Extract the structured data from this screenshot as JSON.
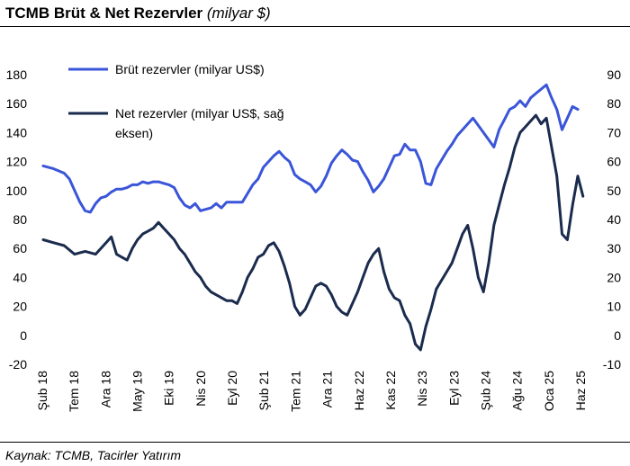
{
  "title": "TCMB Brüt & Net Rezervler",
  "title_unit": "(milyar $)",
  "source": "Kaynak: TCMB, Tacirler Yatırım",
  "chart_data": {
    "type": "line",
    "x_labels": [
      "Şub 18",
      "Tem 18",
      "Ara 18",
      "May 19",
      "Eki 19",
      "Nis 20",
      "Eyl 20",
      "Şub 21",
      "Tem 21",
      "Ara 21",
      "Haz 22",
      "Kas 22",
      "Nis 23",
      "Eyl 23",
      "Şub 24",
      "Ağu 24",
      "Oca 25",
      "Haz 25"
    ],
    "y_left": {
      "min": -20,
      "max": 180,
      "ticks": [
        "180",
        "160",
        "140",
        "120",
        "100",
        "80",
        "60",
        "40",
        "20",
        "0",
        "-20"
      ]
    },
    "y_right": {
      "min": -10,
      "max": 90,
      "ticks": [
        "90",
        "80",
        "70",
        "60",
        "50",
        "40",
        "30",
        "20",
        "10",
        "0",
        "-10"
      ]
    },
    "grid": false,
    "legend_position": "top-left",
    "series": [
      {
        "name": "Brüt rezervler (milyar US$)",
        "axis": "left",
        "color": "#3a55d8",
        "values": [
          [
            0,
            117
          ],
          [
            2,
            115
          ],
          [
            4,
            112
          ],
          [
            5,
            108
          ],
          [
            6,
            100
          ],
          [
            7,
            92
          ],
          [
            8,
            86
          ],
          [
            9,
            85
          ],
          [
            10,
            91
          ],
          [
            11,
            95
          ],
          [
            12,
            96
          ],
          [
            13,
            99
          ],
          [
            14,
            101
          ],
          [
            15,
            101
          ],
          [
            16,
            102
          ],
          [
            17,
            104
          ],
          [
            18,
            104
          ],
          [
            19,
            106
          ],
          [
            20,
            105
          ],
          [
            21,
            106
          ],
          [
            22,
            106
          ],
          [
            23,
            105
          ],
          [
            24,
            104
          ],
          [
            25,
            102
          ],
          [
            26,
            95
          ],
          [
            27,
            90
          ],
          [
            28,
            88
          ],
          [
            29,
            91
          ],
          [
            30,
            86
          ],
          [
            31,
            87
          ],
          [
            32,
            88
          ],
          [
            33,
            91
          ],
          [
            34,
            88
          ],
          [
            35,
            92
          ],
          [
            36,
            92
          ],
          [
            38,
            92
          ],
          [
            40,
            104
          ],
          [
            41,
            108
          ],
          [
            42,
            116
          ],
          [
            43,
            120
          ],
          [
            44,
            124
          ],
          [
            45,
            127
          ],
          [
            46,
            123
          ],
          [
            47,
            120
          ],
          [
            48,
            111
          ],
          [
            49,
            108
          ],
          [
            50,
            106
          ],
          [
            51,
            104
          ],
          [
            52,
            99
          ],
          [
            53,
            103
          ],
          [
            54,
            110
          ],
          [
            55,
            119
          ],
          [
            56,
            124
          ],
          [
            57,
            128
          ],
          [
            58,
            125
          ],
          [
            59,
            121
          ],
          [
            60,
            120
          ],
          [
            61,
            113
          ],
          [
            62,
            107
          ],
          [
            63,
            99
          ],
          [
            64,
            103
          ],
          [
            65,
            108
          ],
          [
            66,
            116
          ],
          [
            67,
            124
          ],
          [
            68,
            125
          ],
          [
            69,
            132
          ],
          [
            70,
            128
          ],
          [
            71,
            128
          ],
          [
            72,
            120
          ],
          [
            73,
            105
          ],
          [
            74,
            104
          ],
          [
            75,
            115
          ],
          [
            76,
            121
          ],
          [
            77,
            127
          ],
          [
            78,
            132
          ],
          [
            79,
            138
          ],
          [
            80,
            142
          ],
          [
            81,
            146
          ],
          [
            82,
            150
          ],
          [
            83,
            145
          ],
          [
            84,
            140
          ],
          [
            85,
            135
          ],
          [
            86,
            130
          ],
          [
            87,
            142
          ],
          [
            88,
            149
          ],
          [
            89,
            156
          ],
          [
            90,
            158
          ],
          [
            91,
            162
          ],
          [
            92,
            158
          ],
          [
            93,
            164
          ],
          [
            94,
            167
          ],
          [
            95,
            170
          ],
          [
            96,
            173
          ],
          [
            97,
            164
          ],
          [
            98,
            156
          ],
          [
            99,
            142
          ],
          [
            100,
            150
          ],
          [
            101,
            158
          ],
          [
            102,
            156
          ]
        ]
      },
      {
        "name": "Net rezervler (milyar US$, sağ eksen)",
        "axis": "right",
        "color": "#1a2b4d",
        "values": [
          [
            0,
            33
          ],
          [
            2,
            32
          ],
          [
            4,
            31
          ],
          [
            6,
            28
          ],
          [
            8,
            29
          ],
          [
            10,
            28
          ],
          [
            12,
            32
          ],
          [
            13,
            34
          ],
          [
            14,
            28
          ],
          [
            15,
            27
          ],
          [
            16,
            26
          ],
          [
            17,
            30
          ],
          [
            18,
            33
          ],
          [
            19,
            35
          ],
          [
            20,
            36
          ],
          [
            21,
            37
          ],
          [
            22,
            39
          ],
          [
            23,
            37
          ],
          [
            24,
            35
          ],
          [
            25,
            33
          ],
          [
            26,
            30
          ],
          [
            27,
            28
          ],
          [
            28,
            25
          ],
          [
            29,
            22
          ],
          [
            30,
            20
          ],
          [
            31,
            17
          ],
          [
            32,
            15
          ],
          [
            33,
            14
          ],
          [
            34,
            13
          ],
          [
            35,
            12
          ],
          [
            36,
            12
          ],
          [
            37,
            11
          ],
          [
            38,
            15
          ],
          [
            39,
            20
          ],
          [
            40,
            23
          ],
          [
            41,
            27
          ],
          [
            42,
            28
          ],
          [
            43,
            31
          ],
          [
            44,
            32
          ],
          [
            45,
            29
          ],
          [
            46,
            24
          ],
          [
            47,
            18
          ],
          [
            48,
            10
          ],
          [
            49,
            7
          ],
          [
            50,
            9
          ],
          [
            51,
            13
          ],
          [
            52,
            17
          ],
          [
            53,
            18
          ],
          [
            54,
            17
          ],
          [
            55,
            14
          ],
          [
            56,
            10
          ],
          [
            57,
            8
          ],
          [
            58,
            7
          ],
          [
            59,
            11
          ],
          [
            60,
            15
          ],
          [
            61,
            20
          ],
          [
            62,
            25
          ],
          [
            63,
            28
          ],
          [
            64,
            30
          ],
          [
            65,
            22
          ],
          [
            66,
            16
          ],
          [
            67,
            13
          ],
          [
            68,
            12
          ],
          [
            69,
            7
          ],
          [
            70,
            4
          ],
          [
            71,
            -3
          ],
          [
            72,
            -5
          ],
          [
            73,
            3
          ],
          [
            74,
            9
          ],
          [
            75,
            16
          ],
          [
            76,
            19
          ],
          [
            77,
            22
          ],
          [
            78,
            25
          ],
          [
            79,
            30
          ],
          [
            80,
            35
          ],
          [
            81,
            38
          ],
          [
            82,
            30
          ],
          [
            83,
            20
          ],
          [
            84,
            15
          ],
          [
            85,
            25
          ],
          [
            86,
            38
          ],
          [
            87,
            45
          ],
          [
            88,
            52
          ],
          [
            89,
            58
          ],
          [
            90,
            65
          ],
          [
            91,
            70
          ],
          [
            92,
            72
          ],
          [
            93,
            74
          ],
          [
            94,
            76
          ],
          [
            95,
            73
          ],
          [
            96,
            75
          ],
          [
            97,
            65
          ],
          [
            98,
            55
          ],
          [
            99,
            35
          ],
          [
            100,
            33
          ],
          [
            101,
            45
          ],
          [
            102,
            55
          ],
          [
            103,
            48
          ]
        ]
      }
    ]
  }
}
